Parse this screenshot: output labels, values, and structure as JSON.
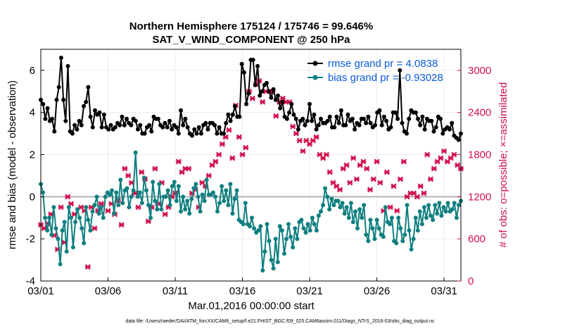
{
  "chart_data": {
    "type": "line",
    "title": "Northern Hemisphere 175124 / 175746 = 99.646%",
    "subtitle": "SAT_V_WIND_COMPONENT @ 250 hPa",
    "xlabel": "Mar.01,2016 00:00:00 start",
    "ylabel": "rmse and bias (model - observation)",
    "ylabel_right": "# of obs: o=possible; ×=assimilated",
    "footnote": "data file: /Users/raeder/DAI/ATM_forcXX/CAM6_setup/f.e21.FHIST_BGC.f09_025.CAM6assim.011/Diags_NTrS_2016-03/obs_diag_output.nc",
    "x_ticks": [
      "03/01",
      "03/06",
      "03/11",
      "03/16",
      "03/21",
      "03/26",
      "03/31"
    ],
    "x_tick_days": [
      0,
      5,
      10,
      15,
      20,
      25,
      30
    ],
    "xlim_days": [
      0,
      31.25
    ],
    "ylim": [
      -4,
      7
    ],
    "y_ticks": [
      -4,
      -2,
      0,
      2,
      4,
      6
    ],
    "ylim_right": [
      0,
      3300
    ],
    "y_ticks_right": [
      0,
      600,
      1200,
      1800,
      2400,
      3000
    ],
    "grid": true,
    "legend_position": "top-right",
    "colors": {
      "rmse": "#000000",
      "bias": "#0f7f7f",
      "obs": "#d0104c",
      "zero_line": "#b3b3b3"
    },
    "series": [
      {
        "name": "rmse grand pr = 4.0838",
        "axis": "left",
        "values": [
          4.6,
          4.4,
          3.7,
          4.2,
          3.6,
          3.7,
          3.1,
          4.6,
          5.2,
          6.6,
          4.6,
          3.6,
          6.2,
          3.1,
          3.0,
          3.4,
          3.2,
          3.6,
          3.4,
          4.3,
          4.5,
          5.2,
          3.8,
          3.3,
          4.1,
          3.9,
          4.0,
          3.3,
          3.9,
          3.3,
          3.2,
          3.4,
          3.2,
          3.3,
          3.5,
          3.4,
          3.8,
          3.4,
          3.7,
          3.5,
          3.4,
          3.7,
          3.6,
          3.2,
          3.4,
          3.0,
          3.0,
          3.3,
          3.4,
          3.1,
          3.8,
          3.7,
          3.7,
          3.4,
          3.3,
          3.5,
          3.3,
          3.6,
          3.2,
          3.4,
          3.3,
          3.0,
          4.1,
          3.4,
          3.7,
          3.3,
          3.0,
          2.9,
          3.2,
          3.0,
          3.3,
          3.0,
          3.4,
          3.5,
          3.2,
          3.5,
          3.5,
          3.4,
          3.0,
          3.3,
          3.0,
          3.0,
          3.5,
          3.9,
          3.6,
          3.9,
          4.3,
          3.8,
          3.8,
          6.3,
          5.9,
          4.4,
          4.9,
          6.5,
          6.5,
          5.3,
          6.2,
          4.8,
          5.0,
          5.3,
          5.4,
          5.0,
          4.7,
          5.1,
          4.6,
          4.8,
          4.2,
          4.5,
          3.8,
          3.7,
          4.0,
          4.4,
          3.9,
          3.7,
          3.2,
          3.6,
          3.7,
          3.4,
          3.6,
          4.4,
          3.6,
          3.9,
          3.2,
          3.4,
          3.7,
          3.5,
          3.5,
          3.6,
          3.8,
          3.3,
          3.3,
          3.8,
          3.5,
          4.1,
          3.4,
          3.4,
          3.9,
          3.6,
          3.7,
          3.2,
          3.5,
          3.4,
          3.7,
          3.7,
          3.5,
          3.8,
          3.5,
          3.3,
          3.4,
          4.0,
          4.1,
          3.4,
          3.8,
          3.6,
          3.2,
          3.3,
          4.0,
          4.0,
          3.7,
          6.0,
          3.5,
          3.1,
          3.0,
          3.7,
          4.1,
          4.0,
          4.0,
          3.7,
          3.4,
          3.8,
          3.2,
          3.7,
          3.6,
          3.6,
          3.1,
          3.3,
          3.8,
          3.7,
          3.0,
          3.2,
          3.3,
          3.2,
          3.5,
          2.9,
          2.8,
          2.7,
          3.0
        ]
      },
      {
        "name": "bias grand pr = -0.93028",
        "axis": "left",
        "values": [
          0.6,
          0.2,
          -1.0,
          -1.6,
          -1.0,
          -1.8,
          -0.5,
          -1.5,
          -2.0,
          -3.2,
          -1.6,
          -1.2,
          -2.6,
          -0.5,
          -1.0,
          -2.4,
          -1.2,
          -0.6,
          -1.0,
          -1.5,
          -2.2,
          -0.5,
          -1.1,
          -1.6,
          -0.7,
          -0.4,
          0.0,
          -0.8,
          -0.5,
          -1.0,
          0.0,
          0.2,
          0.1,
          0.3,
          -0.8,
          0.2,
          -0.4,
          0.8,
          -0.3,
          0.3,
          0.4,
          -0.5,
          0.0,
          0.3,
          2.1,
          0.0,
          0.2,
          -0.3,
          0.9,
          0.3,
          -0.4,
          -1.0,
          0.7,
          -0.2,
          -0.6,
          0.6,
          -0.6,
          0.0,
          0.0,
          0.3,
          -0.4,
          0.5,
          0.7,
          -0.2,
          0.5,
          -0.7,
          0.0,
          -0.6,
          -0.2,
          -0.8,
          -0.1,
          0.4,
          0.6,
          0.0,
          -0.7,
          0.1,
          -0.2,
          0.8,
          0.1,
          0.1,
          0.2,
          0.0,
          -0.7,
          -0.3,
          0.5,
          -0.2,
          0.3,
          -0.4,
          0.6,
          -0.8,
          -0.1,
          0.3,
          -1.1,
          -1.2,
          -1.3,
          -0.3,
          -1.3,
          -1.4,
          -1.0,
          -1.5,
          -1.7,
          -1.6,
          -1.4,
          -3.5,
          -2.6,
          -1.3,
          -2.1,
          -3.0,
          -3.4,
          -2.0,
          -3.1,
          -1.4,
          -1.6,
          -2.7,
          -2.0,
          -1.3,
          -1.9,
          -2.4,
          -1.5,
          -2.0,
          -1.2,
          -1.1,
          -1.5,
          -1.7,
          -1.3,
          -1.6,
          -1.0,
          -1.3,
          -1.6,
          -0.9,
          -0.7,
          -0.4,
          0.4,
          0.0,
          -0.6,
          -0.1,
          -0.4,
          -0.2,
          -0.2,
          -0.5,
          -0.3,
          -0.8,
          -0.5,
          -1.0,
          -0.3,
          -1.2,
          -0.7,
          -1.5,
          -0.6,
          -1.0,
          -0.4,
          -1.8,
          -2.1,
          -1.1,
          -1.5,
          -2.0,
          -1.1,
          -1.5,
          -1.8,
          -1.9,
          -0.5,
          -1.2,
          -1.3,
          -1.0,
          -2.1,
          -2.2,
          -1.0,
          -1.5,
          -2.1,
          -1.8,
          -0.4,
          -1.6,
          -2.5,
          -2.0,
          -1.0,
          -1.6,
          -0.7,
          -1.3,
          -0.5,
          -1.0,
          -0.4,
          -0.9,
          -1.1,
          -0.4,
          -0.8,
          -0.3,
          -0.9,
          -0.5,
          -0.7,
          -0.3,
          -0.7,
          -0.6,
          -0.3,
          -1.0,
          -0.4,
          -0.2
        ]
      },
      {
        "name": "obs assimilated",
        "axis": "right",
        "marker": "x",
        "x_days": [
          0.0,
          0.25,
          0.5,
          0.75,
          1.0,
          1.25,
          1.5,
          1.75,
          2.0,
          2.25,
          2.5,
          3.0,
          3.25,
          3.5,
          3.75,
          4.0,
          4.25,
          4.5,
          5.0,
          5.25,
          5.5,
          5.75,
          6.0,
          6.25,
          6.5,
          6.75,
          7.0,
          7.25,
          7.5,
          7.75,
          8.0,
          8.25,
          8.5,
          8.75,
          9.0,
          9.25,
          9.5,
          9.75,
          10.0,
          10.25,
          10.5,
          10.75,
          11.0,
          11.25,
          11.5,
          11.75,
          12.0,
          12.25,
          12.5,
          12.75,
          13.0,
          13.25,
          13.5,
          13.75,
          14.0,
          14.25,
          14.5,
          14.75,
          15.0,
          15.25,
          15.5,
          15.75,
          16.0,
          16.25,
          16.5,
          16.75,
          17.0,
          17.25,
          17.5,
          17.75,
          18.0,
          18.25,
          18.5,
          18.75,
          19.0,
          19.25,
          19.5,
          19.75,
          20.0,
          20.25,
          20.5,
          20.75,
          21.0,
          21.25,
          21.5,
          21.75,
          22.0,
          22.25,
          22.5,
          22.75,
          23.0,
          23.25,
          23.5,
          23.75,
          24.0,
          24.25,
          24.5,
          24.75,
          25.0,
          25.25,
          25.5,
          25.75,
          26.0,
          26.25,
          26.5,
          26.75,
          27.0,
          27.25,
          27.5,
          27.75,
          28.0,
          28.25,
          28.5,
          28.75,
          29.0,
          29.25,
          29.5,
          29.75,
          30.0,
          30.25,
          30.5,
          30.75,
          31.0,
          31.25
        ],
        "values": [
          800,
          750,
          820,
          950,
          650,
          450,
          1050,
          550,
          1200,
          1100,
          950,
          1050,
          1000,
          200,
          1050,
          750,
          1000,
          1100,
          1000,
          1100,
          950,
          1150,
          800,
          1600,
          1500,
          1400,
          1250,
          1050,
          1550,
          1450,
          850,
          1050,
          1600,
          1100,
          1400,
          950,
          1050,
          1200,
          1250,
          1700,
          1550,
          1600,
          1600,
          1250,
          1300,
          1050,
          1400,
          1350,
          1500,
          1650,
          1700,
          1800,
          1950,
          2050,
          2150,
          1750,
          2500,
          2050,
          1800,
          1900,
          2700,
          2600,
          2800,
          2850,
          2550,
          2700,
          2700,
          2700,
          2350,
          2550,
          2600,
          2550,
          2550,
          2200,
          2100,
          2000,
          1850,
          2000,
          1950,
          2000,
          2050,
          1800,
          1750,
          1800,
          1550,
          1400,
          1350,
          1300,
          1600,
          1650,
          1400,
          1750,
          1450,
          1650,
          1700,
          1600,
          1300,
          1450,
          1700,
          1400,
          1000,
          1550,
          1050,
          1350,
          1000,
          1450,
          1700,
          1200,
          1250,
          1250,
          1200,
          1350,
          1250,
          1800,
          1450,
          1600,
          1700,
          1750,
          1850,
          1700,
          1750,
          1800,
          1650,
          1600
        ]
      }
    ]
  }
}
